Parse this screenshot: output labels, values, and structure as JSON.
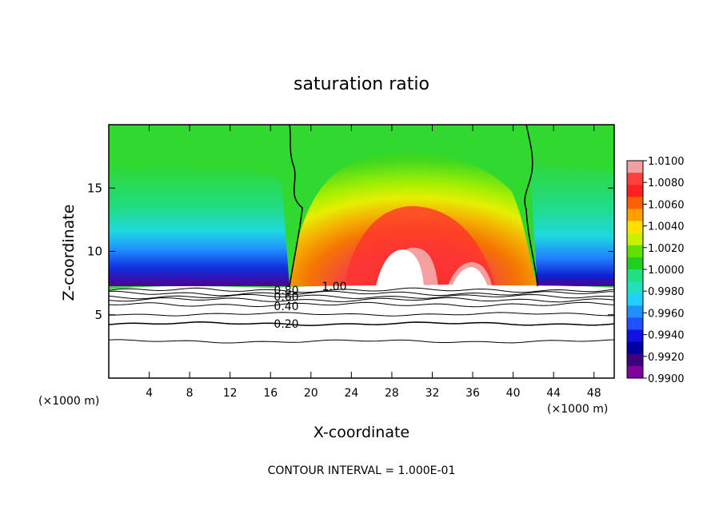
{
  "chart_data": {
    "type": "heatmap",
    "title": "saturation ratio",
    "xlabel": "X-coordinate",
    "ylabel": "Z-coordinate",
    "x_unit_label_left": "(×1000 m)",
    "x_unit_label_right": "(×1000 m)",
    "xlim": [
      0,
      50
    ],
    "ylim": [
      0,
      20
    ],
    "x_ticks": [
      4,
      8,
      12,
      16,
      20,
      24,
      28,
      32,
      36,
      40,
      44,
      48
    ],
    "y_ticks": [
      5,
      10,
      15
    ],
    "footer": "CONTOUR INTERVAL = 1.000E-01",
    "colorbar": {
      "labels": [
        "1.0100",
        "1.0080",
        "1.0060",
        "1.0040",
        "1.0020",
        "1.0000",
        "0.9980",
        "0.9960",
        "0.9940",
        "0.9920",
        "0.9900"
      ],
      "colors": [
        "#f0a0a0",
        "#ff4040",
        "#ff2020",
        "#ff6000",
        "#ffa000",
        "#ffe000",
        "#c8f000",
        "#60e000",
        "#20d020",
        "#20e080",
        "#20e0c0",
        "#20d0ff",
        "#2090ff",
        "#2050ff",
        "#1010e0",
        "#0000a0",
        "#400080",
        "#8000a0"
      ]
    },
    "contours": [
      {
        "level": "1.00",
        "label": "1.00"
      },
      {
        "level": "0.80",
        "label": "0.80"
      },
      {
        "level": "0.60",
        "label": "0.60"
      },
      {
        "level": "0.40",
        "label": "0.40"
      },
      {
        "level": "0.20",
        "label": "0.20"
      }
    ]
  }
}
